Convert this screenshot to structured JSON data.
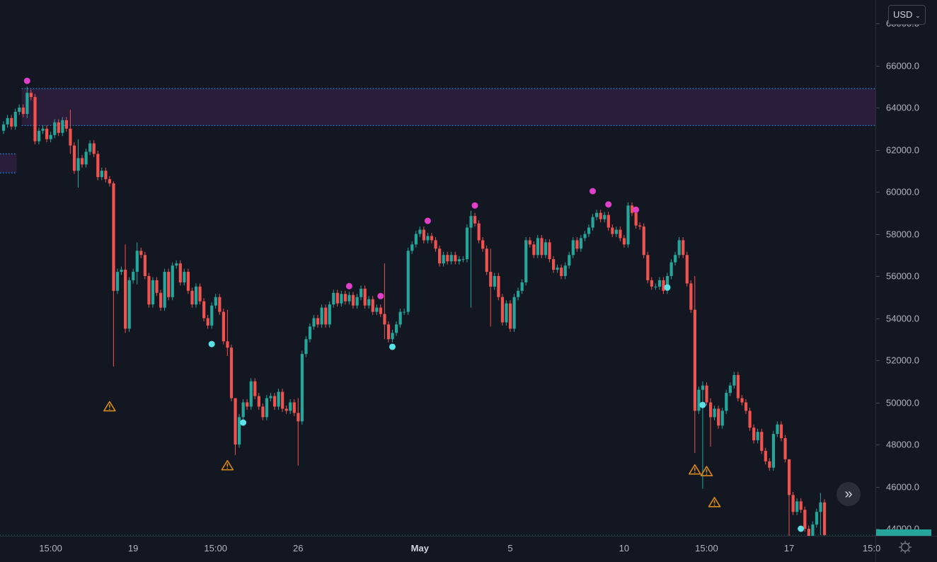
{
  "currency_button": {
    "label": "USD",
    "icon": "chevron-down-icon"
  },
  "colors": {
    "background": "#131722",
    "up": "#26a69a",
    "down": "#ef5350",
    "zone": "#2a1d3a",
    "zone_border": "#2196f3",
    "top_marker": "#e040c8",
    "bottom_marker": "#5ce1e6",
    "warning": "#d98a1c"
  },
  "chart_data": {
    "type": "candlestick",
    "interval_note": "",
    "y_axis": {
      "range": [
        43700,
        68600
      ],
      "ticks": [
        "68000.0",
        "66000.0",
        "64000.0",
        "62000.0",
        "60000.0",
        "58000.0",
        "56000.0",
        "54000.0",
        "52000.0",
        "50000.0",
        "48000.0",
        "46000.0",
        "44000.0"
      ],
      "tick_values": [
        68000,
        66000,
        64000,
        62000,
        60000,
        58000,
        56000,
        54000,
        52000,
        50000,
        48000,
        46000,
        44000
      ]
    },
    "x_axis": {
      "ticks": [
        {
          "label": "15:00",
          "candle_index": 12,
          "bold": false
        },
        {
          "label": "19",
          "candle_index": 33,
          "bold": false
        },
        {
          "label": "15:00",
          "candle_index": 54,
          "bold": false
        },
        {
          "label": "26",
          "candle_index": 75,
          "bold": false
        },
        {
          "label": "May",
          "candle_index": 106,
          "bold": true
        },
        {
          "label": "5",
          "candle_index": 129,
          "bold": false
        },
        {
          "label": "10",
          "candle_index": 158,
          "bold": false
        },
        {
          "label": "15:00",
          "candle_index": 179,
          "bold": false
        },
        {
          "label": "17",
          "candle_index": 200,
          "bold": false
        },
        {
          "label": "15:0",
          "candle_index": 221,
          "bold": false
        }
      ]
    },
    "close": [
      63200,
      63500,
      63100,
      63800,
      64000,
      63700,
      64700,
      64500,
      62400,
      62900,
      63000,
      62500,
      62700,
      63300,
      62800,
      63400,
      63000,
      62200,
      61000,
      61600,
      61300,
      61900,
      62300,
      61800,
      60700,
      61000,
      60600,
      60400,
      55300,
      56200,
      56300,
      53500,
      55800,
      56200,
      57200,
      57000,
      56000,
      54650,
      55800,
      55200,
      54500,
      56200,
      55000,
      56500,
      56600,
      55700,
      56200,
      55300,
      54650,
      55500,
      54800,
      54000,
      53650,
      54600,
      55000,
      54300,
      52900,
      52600,
      50200,
      48000,
      49300,
      50000,
      49800,
      51000,
      50300,
      49800,
      49300,
      50200,
      50300,
      49800,
      50500,
      49700,
      49600,
      50000,
      49500,
      49100,
      52300,
      53000,
      53600,
      54000,
      53700,
      54500,
      53700,
      54650,
      55200,
      54700,
      55150,
      54800,
      55100,
      54600,
      55000,
      55400,
      54600,
      54900,
      54300,
      54500,
      54200,
      53700,
      53000,
      53300,
      53700,
      54300,
      54300,
      57200,
      57500,
      58000,
      58200,
      57700,
      57900,
      57700,
      57300,
      56600,
      57000,
      56700,
      57000,
      56700,
      56800,
      56800,
      58300,
      58850,
      58500,
      57700,
      57300,
      56200,
      55500,
      56000,
      55000,
      53800,
      54700,
      53500,
      55000,
      55300,
      55700,
      57700,
      57500,
      57000,
      57800,
      57000,
      57600,
      56800,
      56300,
      56400,
      56000,
      56500,
      57000,
      57700,
      57300,
      57800,
      58000,
      58300,
      58800,
      59000,
      58700,
      58900,
      58300,
      58000,
      58200,
      57800,
      57500,
      59350,
      59000,
      58400,
      58350,
      57000,
      55800,
      55500,
      55500,
      55800,
      55300,
      56000,
      56650,
      57000,
      57700,
      57000,
      55650,
      54400,
      49600,
      50600,
      50800,
      50000,
      49300,
      49700,
      48900,
      49600,
      50450,
      50800,
      51300,
      50200,
      50000,
      49600,
      48800,
      48200,
      48600,
      47700,
      47200,
      46900,
      48500,
      48950,
      48300,
      47300,
      45600,
      44800,
      45300,
      44900,
      44000,
      43600,
      44200,
      44800,
      45250,
      43700
    ],
    "long_wicks": [
      [
        6,
        65000,
        63500
      ],
      [
        17,
        63900,
        61800
      ],
      [
        19,
        62500,
        60200
      ],
      [
        28,
        60500,
        51700
      ],
      [
        31,
        57500,
        53300
      ],
      [
        34,
        57600,
        55600
      ],
      [
        57,
        54400,
        52200
      ],
      [
        59,
        50000,
        47500
      ],
      [
        75,
        50200,
        47000
      ],
      [
        97,
        56600,
        53000
      ],
      [
        119,
        59100,
        54500
      ],
      [
        124,
        57300,
        53600
      ],
      [
        176,
        56000,
        47600
      ],
      [
        178,
        51000,
        45900
      ],
      [
        180,
        50200,
        47900
      ],
      [
        200,
        46700,
        43600
      ],
      [
        208,
        45700,
        43700
      ]
    ],
    "zones": [
      {
        "top": 64900,
        "bottom": 63150,
        "from_index": 5
      },
      {
        "top": 61800,
        "bottom": 60900,
        "from_index": 0,
        "to_index": 3
      }
    ],
    "markers": {
      "top_dots": [
        [
          6,
          65270
        ],
        [
          88,
          55520
        ],
        [
          96,
          55050
        ],
        [
          108,
          58620
        ],
        [
          120,
          59350
        ],
        [
          150,
          60030
        ],
        [
          154,
          59400
        ],
        [
          161,
          59150
        ]
      ],
      "bottom_dots": [
        [
          53,
          52770
        ],
        [
          61,
          49040
        ],
        [
          99,
          52640
        ],
        [
          169,
          55460
        ],
        [
          178,
          49880
        ],
        [
          203,
          44000
        ]
      ],
      "warnings": [
        [
          27,
          49800
        ],
        [
          57,
          47000
        ],
        [
          176,
          46800
        ],
        [
          179,
          46720
        ],
        [
          181,
          45250
        ]
      ]
    },
    "last_price": 43700
  }
}
